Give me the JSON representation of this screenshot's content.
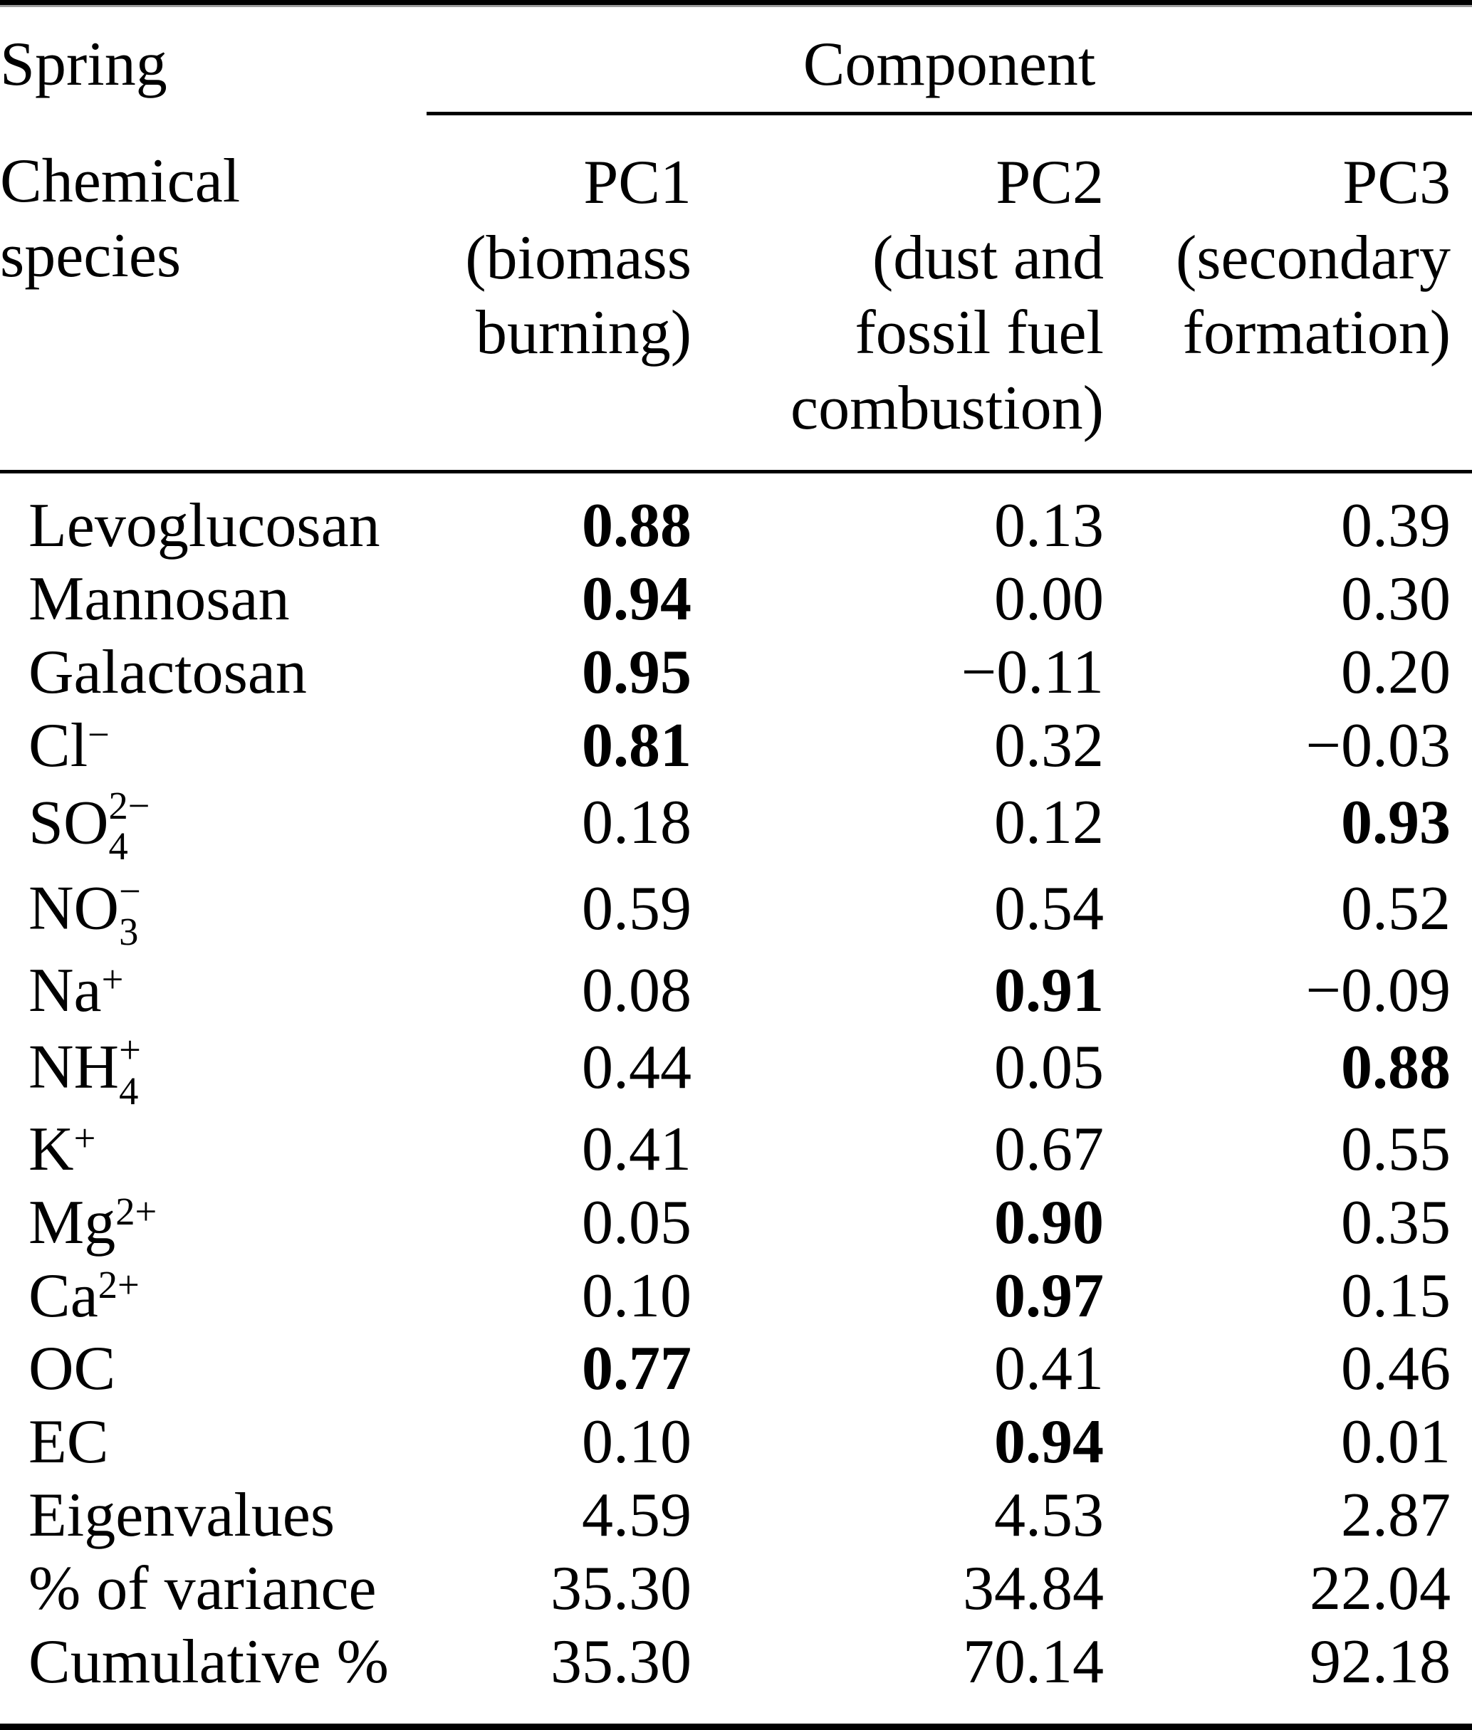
{
  "table": {
    "season_label": "Spring",
    "component_label": "Component",
    "species_header_lines": [
      "Chemical",
      "species"
    ],
    "pc_headers": [
      {
        "id": "PC1",
        "label_lines": [
          "PC1",
          "(biomass",
          "burning)"
        ]
      },
      {
        "id": "PC2",
        "label_lines": [
          "PC2",
          "(dust and",
          "fossil fuel",
          "combustion)"
        ]
      },
      {
        "id": "PC3",
        "label_lines": [
          "PC3",
          "(secondary",
          "formation)"
        ]
      }
    ],
    "rows": [
      {
        "species": {
          "base": "Levoglucosan",
          "sup": "",
          "sub": ""
        },
        "values": [
          "0.88",
          "0.13",
          "0.39"
        ],
        "bold": [
          true,
          false,
          false
        ]
      },
      {
        "species": {
          "base": "Mannosan",
          "sup": "",
          "sub": ""
        },
        "values": [
          "0.94",
          "0.00",
          "0.30"
        ],
        "bold": [
          true,
          false,
          false
        ]
      },
      {
        "species": {
          "base": "Galactosan",
          "sup": "",
          "sub": ""
        },
        "values": [
          "0.95",
          "−0.11",
          "0.20"
        ],
        "bold": [
          true,
          false,
          false
        ]
      },
      {
        "species": {
          "base": "Cl",
          "sup": "−",
          "sub": ""
        },
        "values": [
          "0.81",
          "0.32",
          "−0.03"
        ],
        "bold": [
          true,
          false,
          false
        ]
      },
      {
        "species": {
          "base": "SO",
          "sup": "2−",
          "sub": "4"
        },
        "values": [
          "0.18",
          "0.12",
          "0.93"
        ],
        "bold": [
          false,
          false,
          true
        ]
      },
      {
        "species": {
          "base": "NO",
          "sup": "−",
          "sub": "3"
        },
        "values": [
          "0.59",
          "0.54",
          "0.52"
        ],
        "bold": [
          false,
          false,
          false
        ]
      },
      {
        "species": {
          "base": "Na",
          "sup": "+",
          "sub": ""
        },
        "values": [
          "0.08",
          "0.91",
          "−0.09"
        ],
        "bold": [
          false,
          true,
          false
        ]
      },
      {
        "species": {
          "base": "NH",
          "sup": "+",
          "sub": "4"
        },
        "values": [
          "0.44",
          "0.05",
          "0.88"
        ],
        "bold": [
          false,
          false,
          true
        ]
      },
      {
        "species": {
          "base": "K",
          "sup": "+",
          "sub": ""
        },
        "values": [
          "0.41",
          "0.67",
          "0.55"
        ],
        "bold": [
          false,
          false,
          false
        ]
      },
      {
        "species": {
          "base": "Mg",
          "sup": "2+",
          "sub": ""
        },
        "values": [
          "0.05",
          "0.90",
          "0.35"
        ],
        "bold": [
          false,
          true,
          false
        ]
      },
      {
        "species": {
          "base": "Ca",
          "sup": "2+",
          "sub": ""
        },
        "values": [
          "0.10",
          "0.97",
          "0.15"
        ],
        "bold": [
          false,
          true,
          false
        ]
      },
      {
        "species": {
          "base": "OC",
          "sup": "",
          "sub": ""
        },
        "values": [
          "0.77",
          "0.41",
          "0.46"
        ],
        "bold": [
          true,
          false,
          false
        ]
      },
      {
        "species": {
          "base": "EC",
          "sup": "",
          "sub": ""
        },
        "values": [
          "0.10",
          "0.94",
          "0.01"
        ],
        "bold": [
          false,
          true,
          false
        ]
      },
      {
        "species": {
          "base": "Eigenvalues",
          "sup": "",
          "sub": ""
        },
        "values": [
          "4.59",
          "4.53",
          "2.87"
        ],
        "bold": [
          false,
          false,
          false
        ]
      },
      {
        "species": {
          "base": "% of variance",
          "sup": "",
          "sub": ""
        },
        "values": [
          "35.30",
          "34.84",
          "22.04"
        ],
        "bold": [
          false,
          false,
          false
        ]
      },
      {
        "species": {
          "base": "Cumulative %",
          "sup": "",
          "sub": ""
        },
        "values": [
          "35.30",
          "70.14",
          "92.18"
        ],
        "bold": [
          false,
          false,
          false
        ]
      }
    ],
    "rules_color": "#000000"
  }
}
